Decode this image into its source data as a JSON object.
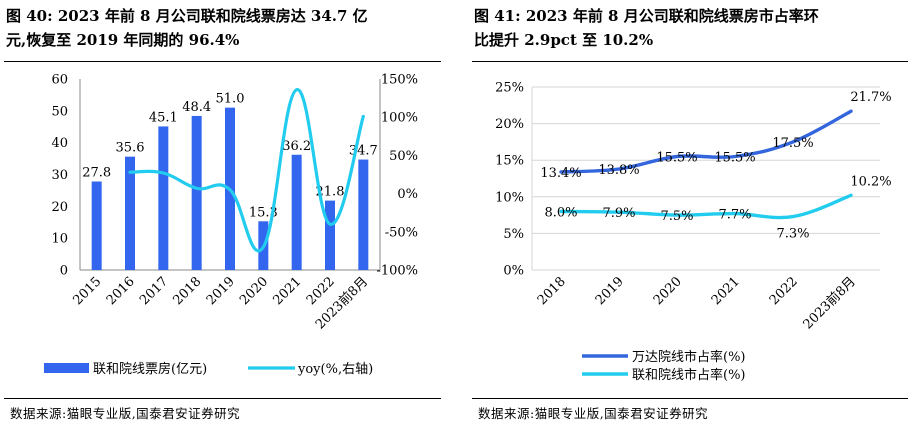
{
  "figures": [
    {
      "title_line1": "图 40: 2023 年前 8 月公司联和院线票房达 34.7 亿",
      "title_line2": "元,恢复至 2019 年同期的 96.4%",
      "source": "数据来源:猫眼专业版,国泰君安证券研究"
    },
    {
      "title_line1": "图 41: 2023 年前 8 月公司联和院线票房市占率环",
      "title_line2": "比提升 2.9pct 至 10.2%",
      "source": "数据来源:猫眼专业版,国泰君安证券研究"
    }
  ],
  "chart_data": [
    {
      "type": "bar",
      "categories": [
        "2015",
        "2016",
        "2017",
        "2018",
        "2019",
        "2020",
        "2021",
        "2022",
        "2023前8月"
      ],
      "series": [
        {
          "name": "联和院线票房(亿元)",
          "type": "bar",
          "axis": "left",
          "color": "#3366ee",
          "values": [
            27.8,
            35.6,
            45.1,
            48.4,
            51.0,
            15.3,
            36.2,
            21.8,
            34.7
          ],
          "labels": [
            "27.8",
            "35.6",
            "45.1",
            "48.4",
            "51.0",
            "15.3",
            "36.2",
            "21.8",
            "34.7"
          ]
        },
        {
          "name": "yoy(%,右轴)",
          "type": "line",
          "axis": "right",
          "color": "#22ccee",
          "values": [
            null,
            28,
            27,
            7,
            5,
            -70,
            136,
            -40,
            101
          ]
        }
      ],
      "y_left": {
        "min": 0,
        "max": 60,
        "ticks": [
          "0",
          "10",
          "20",
          "30",
          "40",
          "50",
          "60"
        ]
      },
      "y_right": {
        "min": -100,
        "max": 150,
        "ticks": [
          "-100%",
          "-50%",
          "0%",
          "50%",
          "100%",
          "150%"
        ]
      },
      "legend_position": "bottom"
    },
    {
      "type": "line",
      "categories": [
        "2018",
        "2019",
        "2020",
        "2021",
        "2022",
        "2023前8月"
      ],
      "series": [
        {
          "name": "万达院线市占率(%)",
          "color": "#3366dd",
          "values": [
            13.4,
            13.8,
            15.5,
            15.5,
            17.5,
            21.7
          ],
          "labels": [
            "13.4%",
            "13.8%",
            "15.5%",
            "15.5%",
            "17.5%",
            "21.7%"
          ]
        },
        {
          "name": "联和院线市占率(%)",
          "color": "#22ccee",
          "values": [
            8.0,
            7.9,
            7.5,
            7.7,
            7.3,
            10.2
          ],
          "labels": [
            "8.0%",
            "7.9%",
            "7.5%",
            "7.7%",
            "7.3%",
            "10.2%"
          ]
        }
      ],
      "y": {
        "min": 0,
        "max": 25,
        "ticks": [
          "0%",
          "5%",
          "10%",
          "15%",
          "20%",
          "25%"
        ]
      },
      "legend_position": "bottom"
    }
  ]
}
